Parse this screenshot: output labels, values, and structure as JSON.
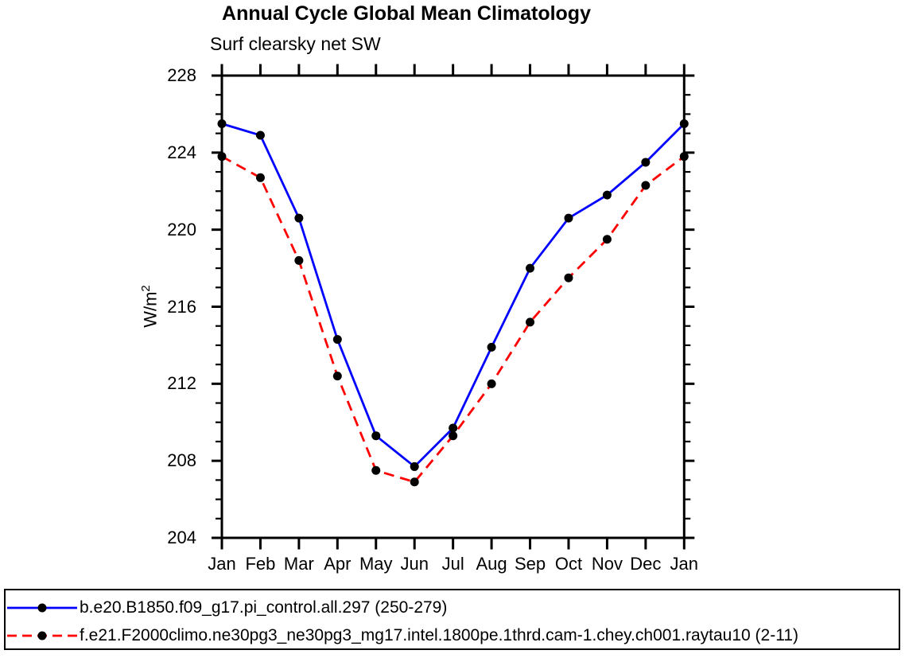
{
  "title": "Annual Cycle Global Mean Climatology",
  "subtitle": "Surf clearsky net SW",
  "background_color": "#ffffff",
  "axis_color": "#000000",
  "chart_data": {
    "type": "line",
    "title": "Annual Cycle Global Mean Climatology",
    "subtitle": "Surf clearsky net SW",
    "ylabel": "W/m2",
    "ylabel_base": "W/m",
    "ylabel_exponent": "2",
    "xlabel": "",
    "categories": [
      "Jan",
      "Feb",
      "Mar",
      "Apr",
      "May",
      "Jun",
      "Jul",
      "Aug",
      "Sep",
      "Oct",
      "Nov",
      "Dec",
      "Jan"
    ],
    "ylim": [
      204,
      228
    ],
    "yticks": [
      204,
      208,
      212,
      216,
      220,
      224,
      228
    ],
    "ytick_step": 4,
    "yminor_step": 1,
    "grid": false,
    "legend_position": "bottom",
    "marker": "filled-circle",
    "marker_color": "#000000",
    "series": [
      {
        "name": "b.e20.B1850.f09_g17.pi_control.all.297 (250-279)",
        "color": "#0000ff",
        "line_style": "solid",
        "values": [
          225.5,
          224.9,
          220.6,
          214.3,
          209.3,
          207.7,
          209.7,
          213.9,
          218.0,
          220.6,
          221.8,
          223.5,
          225.5
        ]
      },
      {
        "name": "f.e21.F2000climo.ne30pg3_ne30pg3_mg17.intel.1800pe.1thrd.cam-1.chey.ch001.raytau10 (2-11)",
        "color": "#ff0000",
        "line_style": "dashed",
        "values": [
          223.8,
          222.7,
          218.4,
          212.4,
          207.5,
          206.9,
          209.3,
          212.0,
          215.2,
          217.5,
          219.5,
          222.3,
          223.8
        ]
      }
    ]
  }
}
